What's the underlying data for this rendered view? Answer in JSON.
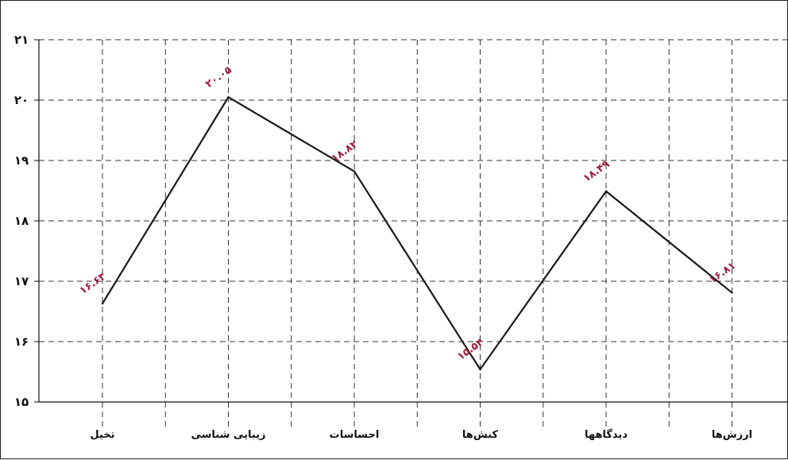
{
  "chart_data": {
    "type": "line",
    "title": "",
    "xlabel": "",
    "ylabel": "",
    "categories": [
      "تخیل",
      "زیبایی شناسی",
      "احساسات",
      "کنش‌ها",
      "دیدگاهها",
      "ارزش‌ها"
    ],
    "values": [
      16.63,
      20.05,
      18.82,
      15.54,
      18.49,
      16.81
    ],
    "data_labels": [
      "۱۶.۶۳",
      "۲۰.۰۵",
      "۱۸.۸۲",
      "۱۵.۵۴",
      "۱۸.۴۹",
      "۱۶.۸۱"
    ],
    "y_ticks": [
      "۱۵",
      "۱۶",
      "۱۷",
      "۱۸",
      "۱۹",
      "۲۰",
      "۲۱"
    ],
    "ylim": [
      15,
      21
    ],
    "grid": true,
    "line_color": "#1a1a1a",
    "label_color": "#9c1c3b",
    "grid_color": "#333333"
  }
}
